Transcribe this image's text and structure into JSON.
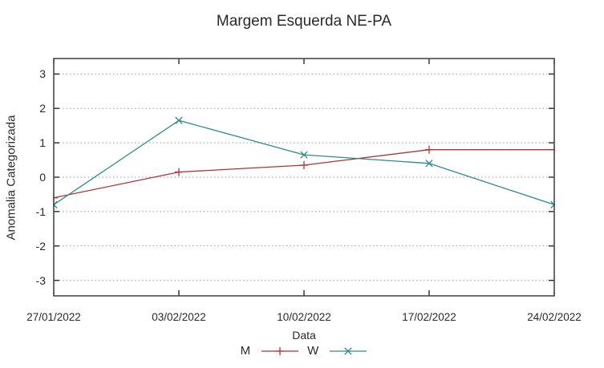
{
  "chart_data": {
    "type": "line",
    "title": "Margem Esquerda NE-PA",
    "xlabel": "Data",
    "ylabel": "Anomalia Categorizada",
    "categories": [
      "27/01/2022",
      "03/02/2022",
      "10/02/2022",
      "17/02/2022",
      "24/02/2022"
    ],
    "series": [
      {
        "name": "M",
        "marker": "plus",
        "color": "#b23232",
        "values": [
          -0.6,
          0.15,
          0.35,
          0.8,
          0.8
        ]
      },
      {
        "name": "W",
        "marker": "cross",
        "color": "#2e8b8b",
        "values": [
          -0.8,
          1.65,
          0.65,
          0.4,
          -0.8
        ]
      }
    ],
    "yticks": [
      3,
      2,
      1,
      0,
      -1,
      -2,
      -3
    ],
    "ylim": [
      -3.45,
      3.45
    ],
    "grid": "horizontal-dotted",
    "legend_position": "bottom-center"
  },
  "style": {
    "background": "#ffffff",
    "border_color": "#4a4a4a",
    "tick_color": "#1a1a1a",
    "grid_color": "#9a9a9a",
    "text_color": "#2a2a2a"
  }
}
